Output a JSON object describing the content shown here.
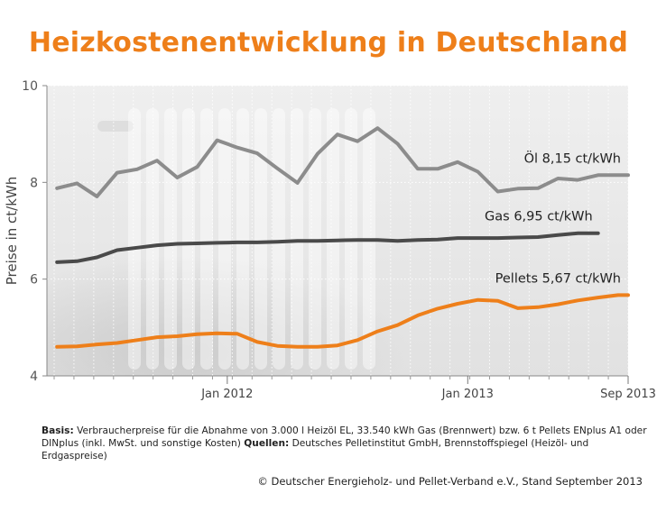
{
  "title": "Heizkostenentwicklung in Deutschland",
  "chart_data": {
    "type": "line",
    "ylabel": "Preise in ct/kWh",
    "ylim": [
      4,
      10
    ],
    "yticks": [
      4,
      6,
      8,
      10
    ],
    "xlim": [
      2011.25,
      2013.667
    ],
    "xticks": [
      {
        "value": 2012.0,
        "label": "Jan 2012"
      },
      {
        "value": 2013.0,
        "label": "Jan 2013"
      },
      {
        "value": 2013.667,
        "label": "Sep 2013"
      }
    ],
    "series": [
      {
        "name": "Öl",
        "label": "Öl  8,15 ct/kWh",
        "color": "#8c8c8c",
        "x": [
          2011.292,
          2011.375,
          2011.458,
          2011.542,
          2011.625,
          2011.708,
          2011.792,
          2011.875,
          2011.958,
          2012.042,
          2012.125,
          2012.208,
          2012.292,
          2012.375,
          2012.458,
          2012.542,
          2012.625,
          2012.708,
          2012.792,
          2012.875,
          2012.958,
          2013.042,
          2013.125,
          2013.208,
          2013.292,
          2013.375,
          2013.458,
          2013.542,
          2013.625,
          2013.667
        ],
        "values": [
          7.88,
          7.98,
          7.71,
          8.2,
          8.27,
          8.45,
          8.1,
          8.32,
          8.87,
          8.72,
          8.6,
          8.29,
          7.99,
          8.59,
          8.99,
          8.85,
          9.12,
          8.8,
          8.28,
          8.28,
          8.42,
          8.22,
          7.81,
          7.87,
          7.88,
          8.08,
          8.05,
          8.15,
          8.15,
          8.15
        ]
      },
      {
        "name": "Gas",
        "label": "Gas  6,95 ct/kWh",
        "color": "#4a4a4a",
        "x": [
          2011.292,
          2011.375,
          2011.458,
          2011.542,
          2011.625,
          2011.708,
          2011.792,
          2011.875,
          2011.958,
          2012.042,
          2012.125,
          2012.208,
          2012.292,
          2012.375,
          2012.458,
          2012.542,
          2012.625,
          2012.708,
          2012.792,
          2012.875,
          2012.958,
          2013.042,
          2013.125,
          2013.208,
          2013.292,
          2013.375,
          2013.458,
          2013.542
        ],
        "values": [
          6.35,
          6.37,
          6.45,
          6.6,
          6.65,
          6.7,
          6.73,
          6.74,
          6.75,
          6.76,
          6.76,
          6.77,
          6.79,
          6.79,
          6.8,
          6.81,
          6.81,
          6.79,
          6.81,
          6.82,
          6.85,
          6.85,
          6.85,
          6.86,
          6.87,
          6.91,
          6.95,
          6.95
        ]
      },
      {
        "name": "Pellets",
        "label": "Pellets  5,67 ct/kWh",
        "color": "#ee7f1a",
        "x": [
          2011.292,
          2011.375,
          2011.458,
          2011.542,
          2011.625,
          2011.708,
          2011.792,
          2011.875,
          2011.958,
          2012.042,
          2012.125,
          2012.208,
          2012.292,
          2012.375,
          2012.458,
          2012.542,
          2012.625,
          2012.708,
          2012.792,
          2012.875,
          2012.958,
          2013.042,
          2013.125,
          2013.208,
          2013.292,
          2013.375,
          2013.458,
          2013.542,
          2013.625,
          2013.667
        ],
        "values": [
          4.6,
          4.61,
          4.65,
          4.68,
          4.74,
          4.8,
          4.82,
          4.86,
          4.88,
          4.87,
          4.7,
          4.62,
          4.6,
          4.6,
          4.63,
          4.74,
          4.92,
          5.05,
          5.25,
          5.39,
          5.49,
          5.57,
          5.55,
          5.4,
          5.42,
          5.48,
          5.56,
          5.62,
          5.67,
          5.67
        ]
      }
    ],
    "grid": true
  },
  "footnote": {
    "basis_label": "Basis:",
    "basis_text": " Verbraucherpreise für die Abnahme von 3.000 l Heizöl EL, 33.540 kWh Gas (Brennwert) bzw. 6 t Pellets ENplus A1 oder DINplus (inkl. MwSt. und sonstige Kosten) ",
    "sources_label": "Quellen:",
    "sources_text": " Deutsches Pelletinstitut GmbH, Brennstoffspiegel (Heizöl- und Erdgaspreise)"
  },
  "copyright": "© Deutscher Energieholz- und Pellet-Verband e.V., Stand September 2013"
}
